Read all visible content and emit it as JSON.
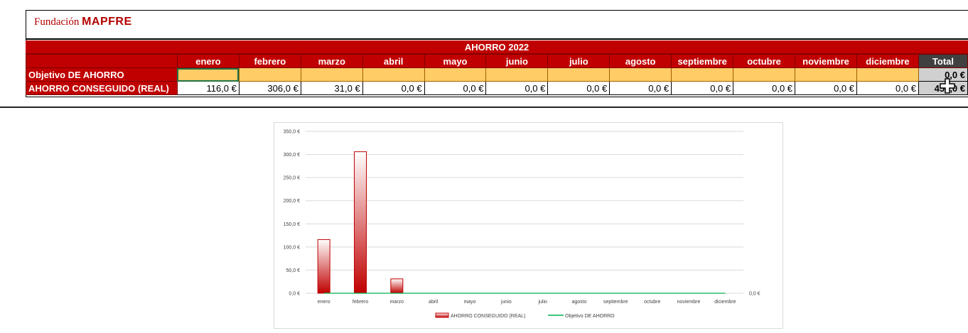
{
  "logo": {
    "prefix": "Fundación ",
    "brand": "MAPFRE"
  },
  "table": {
    "title": "AHORRO 2022",
    "months": [
      "enero",
      "febrero",
      "marzo",
      "abril",
      "mayo",
      "junio",
      "julio",
      "agosto",
      "septiembre",
      "octubre",
      "noviembre",
      "diciembre"
    ],
    "total_header": "Total",
    "rows": [
      {
        "label": "Objetivo DE AHORRO",
        "values": [
          "",
          "",
          "",
          "",
          "",
          "",
          "",
          "",
          "",
          "",
          "",
          ""
        ],
        "total": "0,0 €"
      },
      {
        "label": "AHORRO CONSEGUIDO (REAL)",
        "values": [
          "116,0 €",
          "306,0 €",
          "31,0 €",
          "0,0 €",
          "0,0 €",
          "0,0 €",
          "0,0 €",
          "0,0 €",
          "0,0 €",
          "0,0 €",
          "0,0 €",
          "0,0 €"
        ],
        "total": "453,0 €"
      }
    ]
  },
  "chart_data": {
    "type": "bar",
    "categories": [
      "enero",
      "febrero",
      "marzo",
      "abril",
      "mayo",
      "junio",
      "julio",
      "agosto",
      "septiembre",
      "octubre",
      "noviembre",
      "diciembre"
    ],
    "series": [
      {
        "name": "AHORRO CONSEGUIDO (REAL)",
        "type": "bar",
        "values": [
          116,
          306,
          31,
          0,
          0,
          0,
          0,
          0,
          0,
          0,
          0,
          0
        ],
        "color": "#c00000"
      },
      {
        "name": "Objetivo DE AHORRO",
        "type": "line",
        "values": [
          0,
          0,
          0,
          0,
          0,
          0,
          0,
          0,
          0,
          0,
          0,
          0
        ],
        "color": "#00b050"
      }
    ],
    "ylim": [
      0,
      350
    ],
    "yticks": [
      "0,0 €",
      "50,0 €",
      "100,0 €",
      "150,0 €",
      "200,0 €",
      "250,0 €",
      "300,0 €",
      "350,0 €"
    ],
    "secondary_axis_label": "0,0 €",
    "grid": true,
    "legend_position": "bottom",
    "colors": {
      "bar": "#c00000",
      "line": "#00b050"
    }
  }
}
